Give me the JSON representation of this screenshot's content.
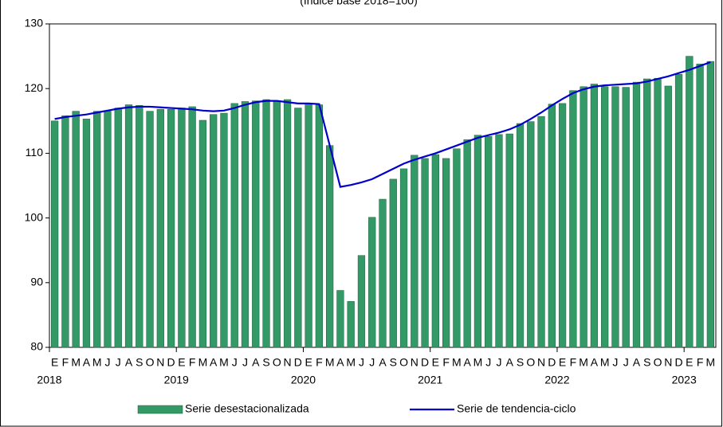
{
  "chart_data": {
    "type": "bar-line",
    "subtitle": "(Índice base 2018=100)",
    "categories": [
      "E",
      "F",
      "M",
      "A",
      "M",
      "J",
      "J",
      "A",
      "S",
      "O",
      "N",
      "D",
      "E",
      "F",
      "M",
      "A",
      "M",
      "J",
      "J",
      "A",
      "S",
      "O",
      "N",
      "D",
      "E",
      "F",
      "M",
      "A",
      "M",
      "J",
      "J",
      "A",
      "S",
      "O",
      "N",
      "D",
      "E",
      "F",
      "M",
      "A",
      "M",
      "J",
      "J",
      "A",
      "S",
      "O",
      "N",
      "D",
      "E",
      "F",
      "M",
      "A",
      "M",
      "J",
      "J",
      "A",
      "S",
      "O",
      "N",
      "D",
      "E",
      "F",
      "M"
    ],
    "year_labels": [
      "2018",
      null,
      null,
      null,
      null,
      null,
      null,
      null,
      null,
      null,
      null,
      null,
      "2019",
      null,
      null,
      null,
      null,
      null,
      null,
      null,
      null,
      null,
      null,
      null,
      "2020",
      null,
      null,
      null,
      null,
      null,
      null,
      null,
      null,
      null,
      null,
      null,
      "2021",
      null,
      null,
      null,
      null,
      null,
      null,
      null,
      null,
      null,
      null,
      null,
      "2022",
      null,
      null,
      null,
      null,
      null,
      null,
      null,
      null,
      null,
      null,
      null,
      "2023",
      null,
      null
    ],
    "series": [
      {
        "name": "Serie desestacionalizada",
        "kind": "bar",
        "color": "#339966",
        "values": [
          115.0,
          115.8,
          116.5,
          115.3,
          116.5,
          116.5,
          117.0,
          117.5,
          117.4,
          116.5,
          116.8,
          116.8,
          117.0,
          117.2,
          115.1,
          116.0,
          116.2,
          117.7,
          118.0,
          118.1,
          118.3,
          118.1,
          118.3,
          117.0,
          117.7,
          117.5,
          111.2,
          88.8,
          87.1,
          94.2,
          100.1,
          102.9,
          106.0,
          107.6,
          109.7,
          109.2,
          109.8,
          109.2,
          110.7,
          112.1,
          112.8,
          112.6,
          112.9,
          113.0,
          114.6,
          114.9,
          115.7,
          117.6,
          117.7,
          119.7,
          120.3,
          120.7,
          120.3,
          120.3,
          120.2,
          121.0,
          121.5,
          121.6,
          120.4,
          122.2,
          125.0,
          123.8,
          124.2
        ]
      },
      {
        "name": "Serie de tendencia-ciclo",
        "kind": "line",
        "color": "#0000cc",
        "values": [
          115.3,
          115.6,
          115.8,
          116.0,
          116.3,
          116.6,
          116.9,
          117.1,
          117.2,
          117.2,
          117.1,
          117.0,
          116.9,
          116.8,
          116.6,
          116.5,
          116.6,
          117.0,
          117.5,
          117.9,
          118.1,
          118.1,
          117.9,
          117.7,
          117.7,
          117.6,
          111.2,
          104.8,
          105.1,
          105.5,
          106.0,
          106.8,
          107.6,
          108.4,
          109.0,
          109.5,
          110.0,
          110.6,
          111.2,
          111.8,
          112.4,
          112.8,
          113.2,
          113.7,
          114.4,
          115.3,
          116.3,
          117.4,
          118.4,
          119.3,
          119.9,
          120.3,
          120.5,
          120.6,
          120.7,
          120.8,
          121.1,
          121.5,
          121.9,
          122.4,
          122.9,
          123.5,
          124.1
        ]
      }
    ],
    "ylim": [
      80,
      130
    ],
    "yticks": [
      80,
      90,
      100,
      110,
      120,
      130
    ],
    "grid": false
  }
}
